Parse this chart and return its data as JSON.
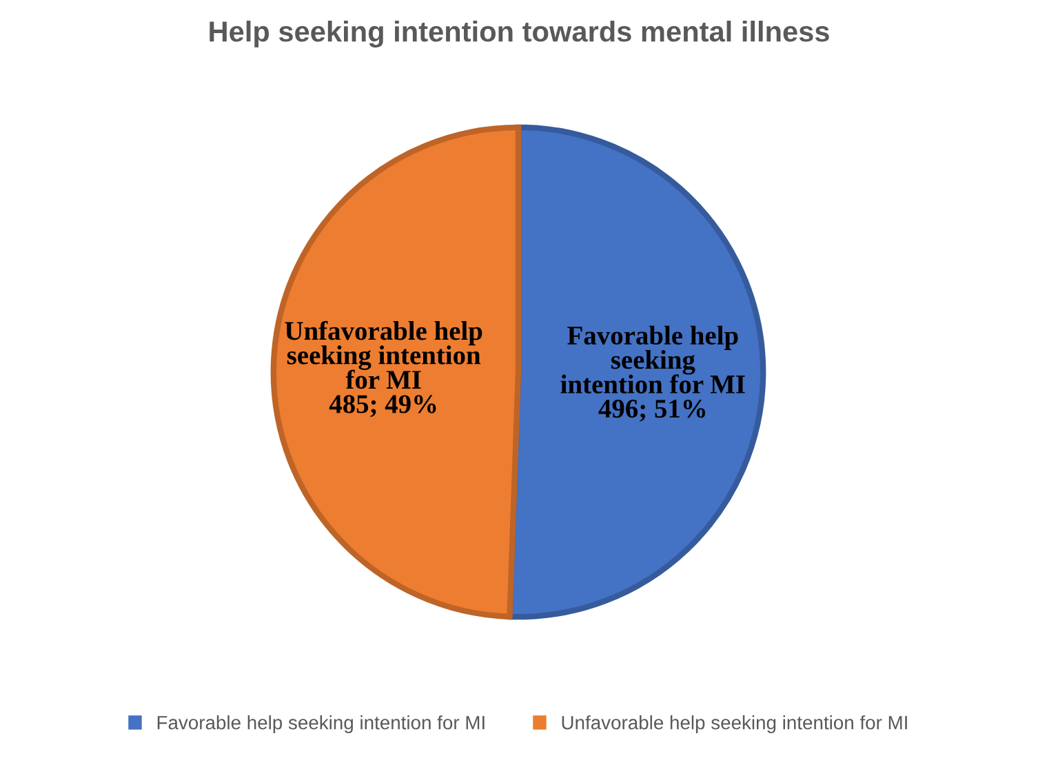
{
  "chart_data": {
    "type": "pie",
    "title": "Help seeking intention towards mental illness",
    "categories": [
      "Favorable help seeking intention for MI",
      "Unfavorable help seeking intention for MI"
    ],
    "values": [
      496,
      485
    ],
    "value_labels": [
      "496; 51%",
      "485; 49%"
    ],
    "colors": [
      "#4472c4",
      "#ed7d31"
    ],
    "legend": "bottom"
  }
}
